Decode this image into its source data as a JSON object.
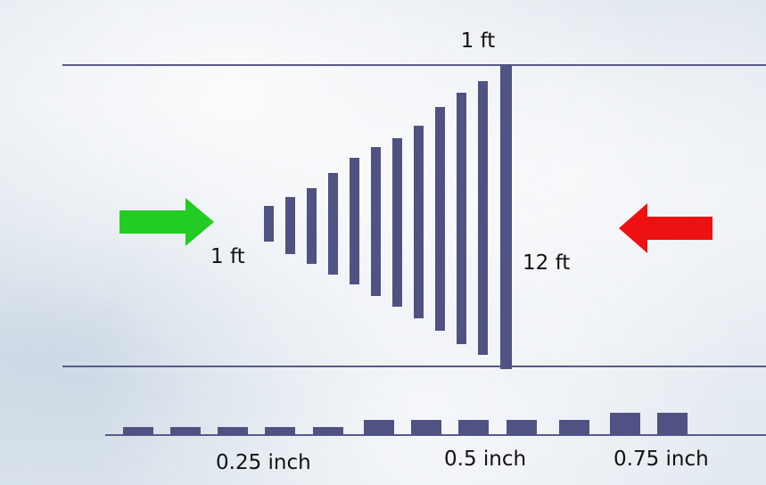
{
  "labels": {
    "top_width": "1 ft",
    "left_height": "1 ft",
    "right_height": "12 ft",
    "thickness_small": "0.25 inch",
    "thickness_medium": "0.5 inch",
    "thickness_large": "0.75 inch"
  },
  "colors": {
    "bar": "#505283",
    "line": "#585a8a",
    "arrow_in": "#22cc22",
    "arrow_out": "#ee1111"
  },
  "icons": {
    "inflow": "arrow-right",
    "outflow": "arrow-left"
  }
}
